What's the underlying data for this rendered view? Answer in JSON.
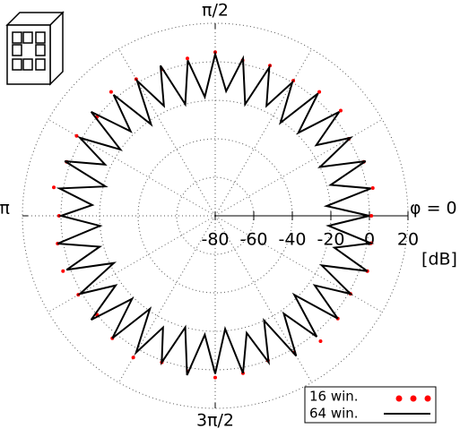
{
  "chart_data": {
    "type": "polar",
    "rlim": [
      -80,
      20
    ],
    "rticks": [
      -80,
      -60,
      -40,
      -20,
      0,
      20
    ],
    "r_label": "[dB]",
    "theta_ticks": [
      {
        "value": 0,
        "label": "φ = 0"
      },
      {
        "value": 90,
        "label": "π/2"
      },
      {
        "value": 180,
        "label": "π"
      },
      {
        "value": 270,
        "label": "3π/2"
      }
    ],
    "grid": true,
    "legend": "lower right",
    "series": [
      {
        "name": "16 win.",
        "color": "#ff0000",
        "style": "dots",
        "x": [
          0,
          10,
          20,
          30,
          40,
          50,
          60,
          70,
          80,
          90,
          100,
          110,
          120,
          130,
          140,
          150,
          160,
          170,
          180,
          190,
          200,
          210,
          220,
          230,
          240,
          250,
          260,
          270,
          280,
          290,
          300,
          310,
          320,
          330,
          340,
          350
        ],
        "values": [
          1,
          3,
          2,
          0,
          5,
          4,
          1,
          3,
          2,
          5,
          3,
          1,
          2,
          4,
          0,
          3,
          2,
          5,
          1,
          3,
          4,
          2,
          0,
          3,
          5,
          1,
          2,
          4,
          3,
          0,
          2,
          5,
          3,
          1,
          4,
          2
        ]
      },
      {
        "name": "64 win.",
        "color": "#000000",
        "style": "line",
        "x": [
          0,
          5,
          10,
          15,
          20,
          25,
          30,
          35,
          40,
          45,
          50,
          55,
          60,
          65,
          70,
          75,
          80,
          85,
          90,
          95,
          100,
          105,
          110,
          115,
          120,
          125,
          130,
          135,
          140,
          145,
          150,
          155,
          160,
          165,
          170,
          175,
          180,
          185,
          190,
          195,
          200,
          205,
          210,
          215,
          220,
          225,
          230,
          235,
          240,
          245,
          250,
          255,
          260,
          265,
          270,
          275,
          280,
          285,
          290,
          295,
          300,
          305,
          310,
          315,
          320,
          325,
          330,
          335,
          340,
          345,
          350,
          355
        ],
        "values": [
          0,
          -22,
          2,
          -18,
          3,
          -20,
          1,
          -16,
          4,
          -19,
          3,
          -21,
          0,
          -17,
          2,
          -20,
          3,
          -15,
          4,
          -18,
          2,
          -20,
          3,
          -17,
          1,
          -22,
          2,
          -18,
          4,
          -20,
          1,
          -17,
          3,
          -21,
          2,
          -16,
          0,
          -20,
          3,
          -18,
          2,
          -22,
          1,
          -17,
          4,
          -19,
          3,
          -21,
          2,
          -16,
          1,
          -20,
          4,
          -18,
          2,
          -21,
          3,
          -17,
          1,
          -20,
          4,
          -18,
          2,
          -22,
          3,
          -17,
          1,
          -19,
          4,
          -16,
          2,
          -21
        ]
      }
    ]
  }
}
